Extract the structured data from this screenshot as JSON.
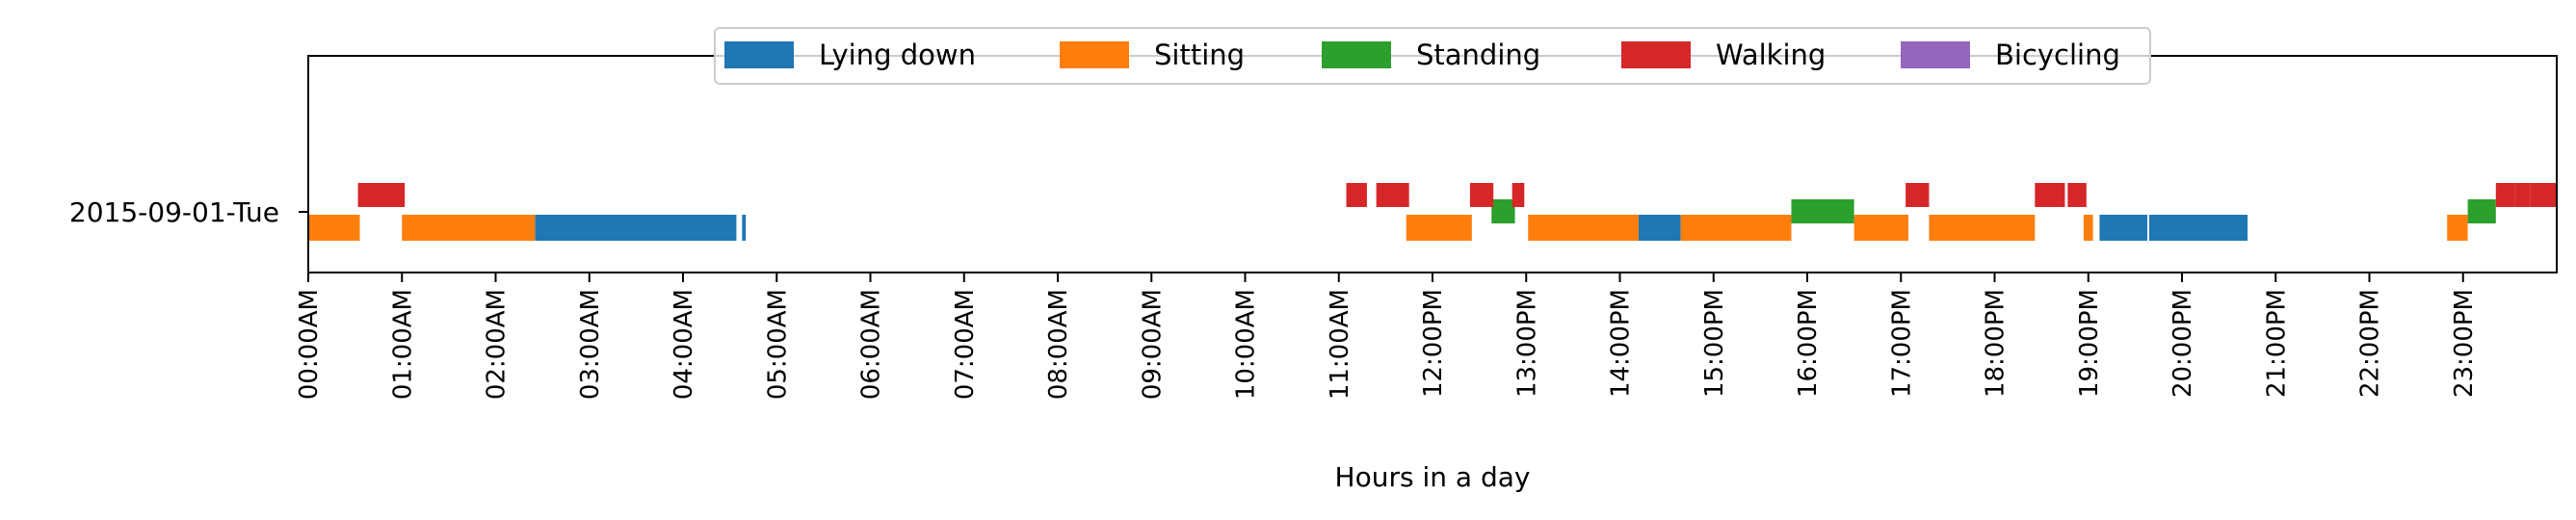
{
  "chart_data": {
    "type": "timeline",
    "xlabel": "Hours in a day",
    "xlim": [
      0,
      24
    ],
    "row_label": "2015-09-01-Tue",
    "x_tick_labels": [
      "00:00AM",
      "01:00AM",
      "02:00AM",
      "03:00AM",
      "04:00AM",
      "05:00AM",
      "06:00AM",
      "07:00AM",
      "08:00AM",
      "09:00AM",
      "10:00AM",
      "11:00AM",
      "12:00PM",
      "13:00PM",
      "14:00PM",
      "15:00PM",
      "16:00PM",
      "17:00PM",
      "18:00PM",
      "19:00PM",
      "20:00PM",
      "21:00PM",
      "22:00PM",
      "23:00PM"
    ],
    "legend_position": "top-center",
    "series": [
      {
        "name": "Lying down",
        "color": "#1f77b4",
        "lane": "bottom",
        "segments": [
          [
            2.42,
            4.57
          ],
          [
            4.63,
            4.67
          ],
          [
            14.2,
            14.65
          ],
          [
            19.12,
            19.63
          ],
          [
            19.65,
            20.7
          ]
        ]
      },
      {
        "name": "Sitting",
        "color": "#ff7f0e",
        "lane": "bottom",
        "segments": [
          [
            0.0,
            0.55
          ],
          [
            1.0,
            2.42
          ],
          [
            11.72,
            12.42
          ],
          [
            13.02,
            14.2
          ],
          [
            14.65,
            15.83
          ],
          [
            16.5,
            17.08
          ],
          [
            17.3,
            18.43
          ],
          [
            18.95,
            19.05
          ],
          [
            22.83,
            23.05
          ]
        ]
      },
      {
        "name": "Standing",
        "color": "#2ca02c",
        "lane": "middle",
        "segments": [
          [
            12.63,
            12.88
          ],
          [
            15.83,
            16.5
          ],
          [
            23.05,
            23.35
          ]
        ]
      },
      {
        "name": "Walking",
        "color": "#d62728",
        "lane": "top",
        "segments": [
          [
            0.53,
            1.03
          ],
          [
            11.08,
            11.3
          ],
          [
            11.4,
            11.75
          ],
          [
            12.4,
            12.65
          ],
          [
            12.85,
            12.98
          ],
          [
            17.05,
            17.3
          ],
          [
            18.43,
            18.75
          ],
          [
            18.78,
            18.98
          ],
          [
            23.35,
            23.55
          ],
          [
            23.55,
            23.72
          ],
          [
            23.72,
            24.0
          ]
        ]
      },
      {
        "name": "Bicycling",
        "color": "#9467bd",
        "lane": "none",
        "segments": []
      }
    ]
  }
}
